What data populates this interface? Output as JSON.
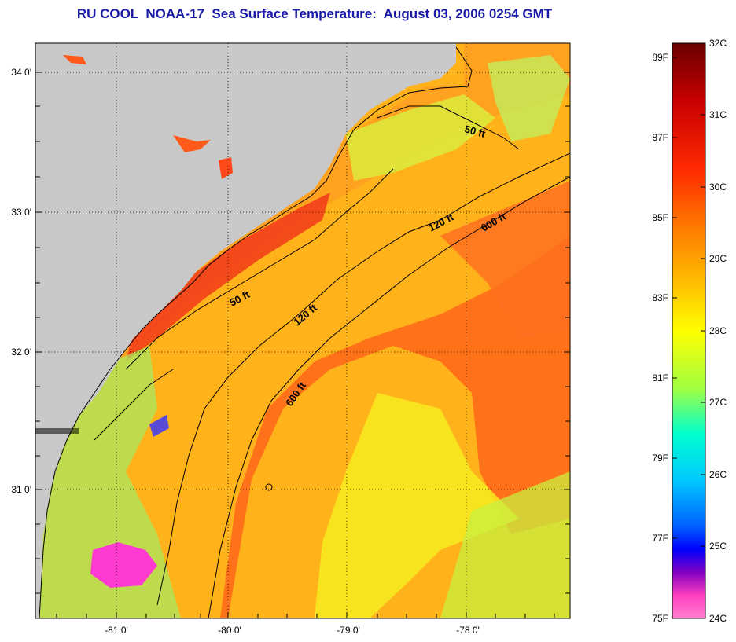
{
  "title": "RU COOL  NOAA-17  Sea Surface Temperature:  August 03, 2006 0254 GMT",
  "map": {
    "x_ticks": [
      "-81 0'",
      "-80 0'",
      "-79 0'",
      "-78 0'"
    ],
    "y_ticks": [
      "34 0'",
      "33 0'",
      "32 0'",
      "31 0'"
    ],
    "contour_labels": [
      {
        "text": "50 ft",
        "name": "contour-label-50ft-north"
      },
      {
        "text": "50 ft",
        "name": "contour-label-50ft-south"
      },
      {
        "text": "120 ft",
        "name": "contour-label-120ft-north"
      },
      {
        "text": "120 ft",
        "name": "contour-label-120ft-south"
      },
      {
        "text": "600 ft",
        "name": "contour-label-600ft-north"
      },
      {
        "text": "600 ft",
        "name": "contour-label-600ft-south"
      }
    ],
    "colors": {
      "land": "#c8c8c8",
      "warm": "#ff6a1a",
      "hot": "#f23a1a",
      "mid": "#ffb21a",
      "cool": "#f5f020",
      "cold": "#8de870",
      "coldest": "#ff3ad0"
    }
  },
  "colorbar": {
    "celsius": [
      "32C",
      "31C",
      "30C",
      "29C",
      "28C",
      "27C",
      "26C",
      "25C",
      "24C"
    ],
    "fahrenheit": [
      "89F",
      "87F",
      "85F",
      "83F",
      "81F",
      "79F",
      "77F",
      "75F"
    ],
    "stops": [
      "#6a0000",
      "#c80000",
      "#ff2a00",
      "#ff7a00",
      "#ffc000",
      "#ffff00",
      "#a0ff40",
      "#00ffd0",
      "#00c8ff",
      "#0060ff",
      "#0000ff",
      "#8000c0",
      "#ff40c0",
      "#ff80d0"
    ]
  }
}
